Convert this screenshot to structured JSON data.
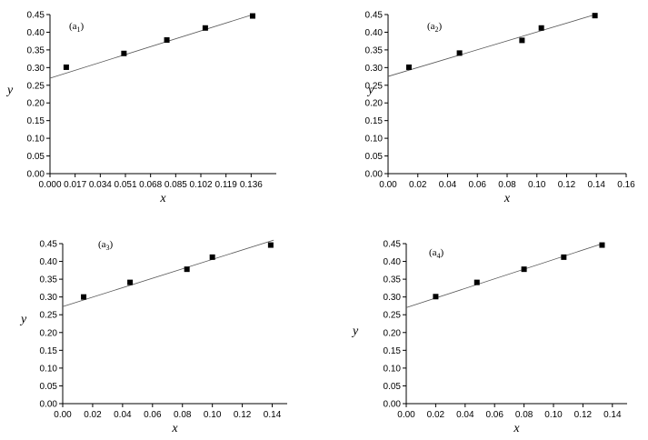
{
  "chart_data": [
    {
      "type": "scatter",
      "label": "(a",
      "label_sub": "1",
      "label_close": ")",
      "xlabel": "x",
      "ylabel": "y",
      "xlim": [
        0,
        0.153
      ],
      "ylim": [
        0,
        0.45
      ],
      "xticks": [
        0.0,
        0.017,
        0.034,
        0.051,
        0.068,
        0.085,
        0.102,
        0.119,
        0.136
      ],
      "xtick_labels": [
        "0.000",
        "0.017",
        "0.034",
        "0.051",
        "0.068",
        "0.085",
        "0.102",
        "0.119",
        "0.136"
      ],
      "yticks": [
        0,
        0.05,
        0.1,
        0.15,
        0.2,
        0.25,
        0.3,
        0.35,
        0.4,
        0.45
      ],
      "ytick_labels": [
        "0.00",
        "0.05",
        "0.10",
        "0.15",
        "0.20",
        "0.25",
        "0.30",
        "0.35",
        "0.40",
        "0.45"
      ],
      "points": [
        {
          "x": 0.011,
          "y": 0.301
        },
        {
          "x": 0.05,
          "y": 0.34
        },
        {
          "x": 0.079,
          "y": 0.378
        },
        {
          "x": 0.105,
          "y": 0.412
        },
        {
          "x": 0.137,
          "y": 0.446
        }
      ],
      "fit": [
        {
          "x": 0,
          "y": 0.27
        },
        {
          "x": 0.138,
          "y": 0.451
        }
      ]
    },
    {
      "type": "scatter",
      "label": "(a",
      "label_sub": "2",
      "label_close": ")",
      "xlabel": "x",
      "ylabel": "y",
      "xlim": [
        0,
        0.16
      ],
      "ylim": [
        0,
        0.45
      ],
      "xticks": [
        0,
        0.02,
        0.04,
        0.06,
        0.08,
        0.1,
        0.12,
        0.14,
        0.16
      ],
      "xtick_labels": [
        "0.00",
        "0.02",
        "0.04",
        "0.06",
        "0.08",
        "0.10",
        "0.12",
        "0.14",
        "0.16"
      ],
      "yticks": [
        0,
        0.05,
        0.1,
        0.15,
        0.2,
        0.25,
        0.3,
        0.35,
        0.4,
        0.45
      ],
      "ytick_labels": [
        "0.00",
        "0.05",
        "0.10",
        "0.15",
        "0.20",
        "0.25",
        "0.30",
        "0.35",
        "0.40",
        "0.45"
      ],
      "points": [
        {
          "x": 0.014,
          "y": 0.301
        },
        {
          "x": 0.048,
          "y": 0.341
        },
        {
          "x": 0.09,
          "y": 0.377
        },
        {
          "x": 0.103,
          "y": 0.412
        },
        {
          "x": 0.139,
          "y": 0.447
        }
      ],
      "fit": [
        {
          "x": 0,
          "y": 0.275
        },
        {
          "x": 0.14,
          "y": 0.451
        }
      ]
    },
    {
      "type": "scatter",
      "label": "(a",
      "label_sub": "3",
      "label_close": ")",
      "xlabel": "x",
      "ylabel": "y",
      "xlim": [
        0,
        0.15
      ],
      "ylim": [
        0,
        0.45
      ],
      "xticks": [
        0,
        0.02,
        0.04,
        0.06,
        0.08,
        0.1,
        0.12,
        0.14
      ],
      "xtick_labels": [
        "0.00",
        "0.02",
        "0.04",
        "0.06",
        "0.08",
        "0.10",
        "0.12",
        "0.14"
      ],
      "yticks": [
        0,
        0.05,
        0.1,
        0.15,
        0.2,
        0.25,
        0.3,
        0.35,
        0.4,
        0.45
      ],
      "ytick_labels": [
        "0.00",
        "0.05",
        "0.10",
        "0.15",
        "0.20",
        "0.25",
        "0.30",
        "0.35",
        "0.40",
        "0.45"
      ],
      "points": [
        {
          "x": 0.014,
          "y": 0.3
        },
        {
          "x": 0.045,
          "y": 0.341
        },
        {
          "x": 0.083,
          "y": 0.378
        },
        {
          "x": 0.1,
          "y": 0.412
        },
        {
          "x": 0.139,
          "y": 0.446
        }
      ],
      "fit": [
        {
          "x": 0,
          "y": 0.273
        },
        {
          "x": 0.141,
          "y": 0.46
        }
      ]
    },
    {
      "type": "scatter",
      "label": "(a",
      "label_sub": "4",
      "label_close": ")",
      "xlabel": "x",
      "ylabel": "y",
      "xlim": [
        0,
        0.15
      ],
      "ylim": [
        0,
        0.45
      ],
      "xticks": [
        0,
        0.02,
        0.04,
        0.06,
        0.08,
        0.1,
        0.12,
        0.14
      ],
      "xtick_labels": [
        "0.00",
        "0.02",
        "0.04",
        "0.06",
        "0.08",
        "0.10",
        "0.12",
        "0.14"
      ],
      "yticks": [
        0,
        0.05,
        0.1,
        0.15,
        0.2,
        0.25,
        0.3,
        0.35,
        0.4,
        0.45
      ],
      "ytick_labels": [
        "0.00",
        "0.05",
        "0.10",
        "0.15",
        "0.20",
        "0.25",
        "0.30",
        "0.35",
        "0.40",
        "0.45"
      ],
      "points": [
        {
          "x": 0.02,
          "y": 0.301
        },
        {
          "x": 0.048,
          "y": 0.341
        },
        {
          "x": 0.08,
          "y": 0.378
        },
        {
          "x": 0.107,
          "y": 0.412
        },
        {
          "x": 0.133,
          "y": 0.446
        }
      ],
      "fit": [
        {
          "x": 0,
          "y": 0.27
        },
        {
          "x": 0.134,
          "y": 0.451
        }
      ]
    }
  ]
}
